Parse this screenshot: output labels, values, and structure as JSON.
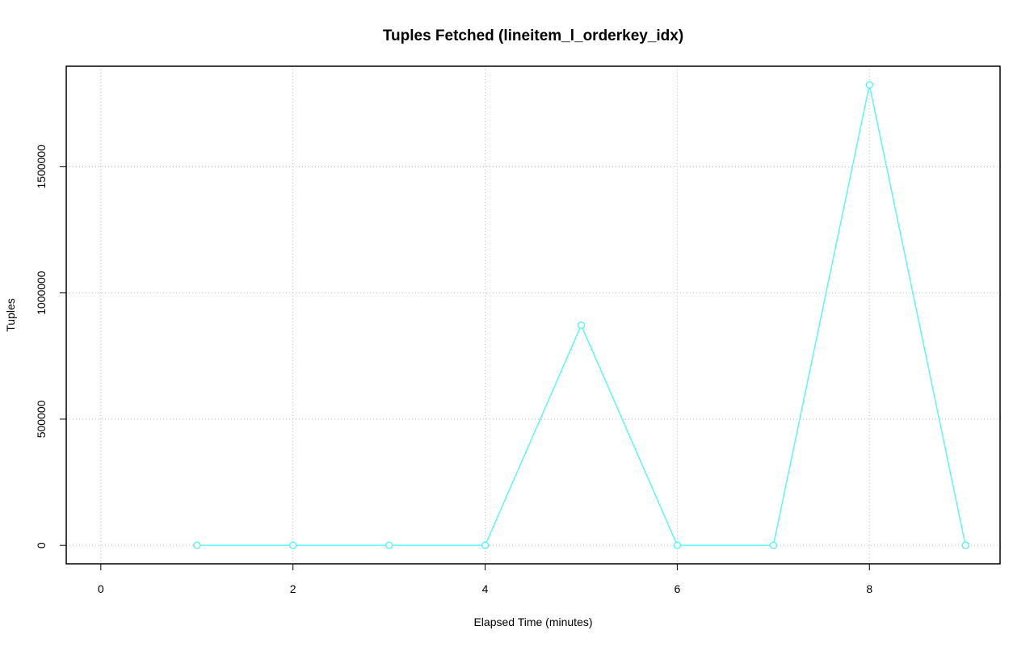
{
  "chart_data": {
    "type": "line",
    "title": "Tuples Fetched (lineitem_l_orderkey_idx)",
    "x_label": "Elapsed Time (minutes)",
    "y_label": "Tuples",
    "x": [
      1,
      2,
      3,
      4,
      5,
      6,
      7,
      8,
      9
    ],
    "series": [
      {
        "name": "Tuples",
        "color": "#5ff5f5",
        "values": [
          0,
          0,
          0,
          0,
          872000,
          0,
          0,
          1824000,
          0
        ]
      }
    ],
    "xlim": [
      -0.36,
      9.36
    ],
    "xticks": [
      0,
      2,
      4,
      6,
      8
    ],
    "ylim": [
      -73000,
      1898000
    ],
    "yticks": [
      0,
      500000,
      1000000,
      1500000
    ],
    "grid": true
  }
}
